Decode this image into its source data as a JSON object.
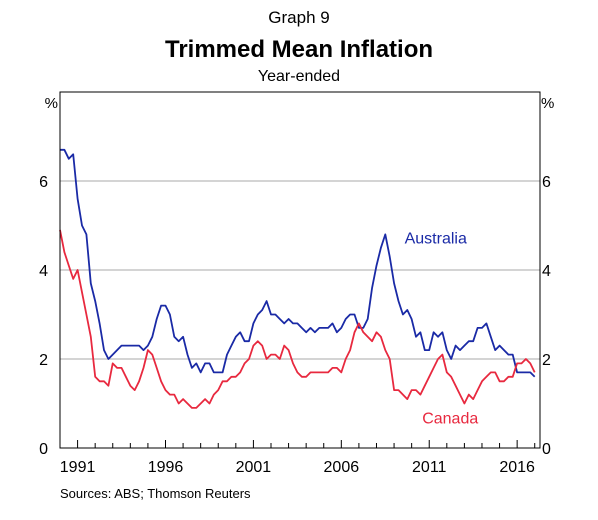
{
  "header": {
    "graph_number": "Graph 9",
    "title": "Trimmed Mean Inflation",
    "subtitle": "Year-ended"
  },
  "footer": {
    "sources": "Sources:   ABS; Thomson Reuters"
  },
  "colors": {
    "australia": "#1a2aa6",
    "canada": "#e8293f",
    "grid": "#a8a8a8",
    "axis": "#000000"
  },
  "chart_data": {
    "type": "line",
    "title": "Trimmed Mean Inflation",
    "subtitle": "Year-ended",
    "ylabel_left": "%",
    "ylabel_right": "%",
    "ylim": [
      0,
      8
    ],
    "yticks": [
      0,
      2,
      4,
      6
    ],
    "xlim": [
      1990,
      2017.3
    ],
    "xticks": [
      1991,
      1996,
      2001,
      2006,
      2011,
      2016
    ],
    "grid": true,
    "legend": "inline labels",
    "series": [
      {
        "name": "Australia",
        "color": "#1a2aa6",
        "x": [
          1990.0,
          1990.25,
          1990.5,
          1990.75,
          1991.0,
          1991.25,
          1991.5,
          1991.75,
          1992.0,
          1992.25,
          1992.5,
          1992.75,
          1993.0,
          1993.25,
          1993.5,
          1993.75,
          1994.0,
          1994.25,
          1994.5,
          1994.75,
          1995.0,
          1995.25,
          1995.5,
          1995.75,
          1996.0,
          1996.25,
          1996.5,
          1996.75,
          1997.0,
          1997.25,
          1997.5,
          1997.75,
          1998.0,
          1998.25,
          1998.5,
          1998.75,
          1999.0,
          1999.25,
          1999.5,
          1999.75,
          2000.0,
          2000.25,
          2000.5,
          2000.75,
          2001.0,
          2001.25,
          2001.5,
          2001.75,
          2002.0,
          2002.25,
          2002.5,
          2002.75,
          2003.0,
          2003.25,
          2003.5,
          2003.75,
          2004.0,
          2004.25,
          2004.5,
          2004.75,
          2005.0,
          2005.25,
          2005.5,
          2005.75,
          2006.0,
          2006.25,
          2006.5,
          2006.75,
          2007.0,
          2007.25,
          2007.5,
          2007.75,
          2008.0,
          2008.25,
          2008.5,
          2008.75,
          2009.0,
          2009.25,
          2009.5,
          2009.75,
          2010.0,
          2010.25,
          2010.5,
          2010.75,
          2011.0,
          2011.25,
          2011.5,
          2011.75,
          2012.0,
          2012.25,
          2012.5,
          2012.75,
          2013.0,
          2013.25,
          2013.5,
          2013.75,
          2014.0,
          2014.25,
          2014.5,
          2014.75,
          2015.0,
          2015.25,
          2015.5,
          2015.75,
          2016.0,
          2016.25,
          2016.5,
          2016.75,
          2017.0
        ],
        "values": [
          6.7,
          6.7,
          6.5,
          6.6,
          5.6,
          5.0,
          4.8,
          3.7,
          3.3,
          2.8,
          2.2,
          2.0,
          2.1,
          2.2,
          2.3,
          2.3,
          2.3,
          2.3,
          2.3,
          2.2,
          2.3,
          2.5,
          2.9,
          3.2,
          3.2,
          3.0,
          2.5,
          2.4,
          2.5,
          2.1,
          1.8,
          1.9,
          1.7,
          1.9,
          1.9,
          1.7,
          1.7,
          1.7,
          2.1,
          2.3,
          2.5,
          2.6,
          2.4,
          2.4,
          2.8,
          3.0,
          3.1,
          3.3,
          3.0,
          3.0,
          2.9,
          2.8,
          2.9,
          2.8,
          2.8,
          2.7,
          2.6,
          2.7,
          2.6,
          2.7,
          2.7,
          2.7,
          2.8,
          2.6,
          2.7,
          2.9,
          3.0,
          3.0,
          2.7,
          2.7,
          2.9,
          3.6,
          4.1,
          4.5,
          4.8,
          4.3,
          3.7,
          3.3,
          3.0,
          3.1,
          2.9,
          2.5,
          2.6,
          2.2,
          2.2,
          2.6,
          2.5,
          2.6,
          2.2,
          2.0,
          2.3,
          2.2,
          2.3,
          2.4,
          2.4,
          2.7,
          2.7,
          2.8,
          2.5,
          2.2,
          2.3,
          2.2,
          2.1,
          2.1,
          1.7,
          1.7,
          1.7,
          1.7,
          1.6
        ]
      },
      {
        "name": "Canada",
        "color": "#e8293f",
        "x": [
          1990.0,
          1990.25,
          1990.5,
          1990.75,
          1991.0,
          1991.25,
          1991.5,
          1991.75,
          1992.0,
          1992.25,
          1992.5,
          1992.75,
          1993.0,
          1993.25,
          1993.5,
          1993.75,
          1994.0,
          1994.25,
          1994.5,
          1994.75,
          1995.0,
          1995.25,
          1995.5,
          1995.75,
          1996.0,
          1996.25,
          1996.5,
          1996.75,
          1997.0,
          1997.25,
          1997.5,
          1997.75,
          1998.0,
          1998.25,
          1998.5,
          1998.75,
          1999.0,
          1999.25,
          1999.5,
          1999.75,
          2000.0,
          2000.25,
          2000.5,
          2000.75,
          2001.0,
          2001.25,
          2001.5,
          2001.75,
          2002.0,
          2002.25,
          2002.5,
          2002.75,
          2003.0,
          2003.25,
          2003.5,
          2003.75,
          2004.0,
          2004.25,
          2004.5,
          2004.75,
          2005.0,
          2005.25,
          2005.5,
          2005.75,
          2006.0,
          2006.25,
          2006.5,
          2006.75,
          2007.0,
          2007.25,
          2007.5,
          2007.75,
          2008.0,
          2008.25,
          2008.5,
          2008.75,
          2009.0,
          2009.25,
          2009.5,
          2009.75,
          2010.0,
          2010.25,
          2010.5,
          2010.75,
          2011.0,
          2011.25,
          2011.5,
          2011.75,
          2012.0,
          2012.25,
          2012.5,
          2012.75,
          2013.0,
          2013.25,
          2013.5,
          2013.75,
          2014.0,
          2014.25,
          2014.5,
          2014.75,
          2015.0,
          2015.25,
          2015.5,
          2015.75,
          2016.0,
          2016.25,
          2016.5,
          2016.75,
          2017.0
        ],
        "values": [
          4.9,
          4.4,
          4.1,
          3.8,
          4.0,
          3.5,
          3.0,
          2.5,
          1.6,
          1.5,
          1.5,
          1.4,
          1.9,
          1.8,
          1.8,
          1.6,
          1.4,
          1.3,
          1.5,
          1.8,
          2.2,
          2.1,
          1.8,
          1.5,
          1.3,
          1.2,
          1.2,
          1.0,
          1.1,
          1.0,
          0.9,
          0.9,
          1.0,
          1.1,
          1.0,
          1.2,
          1.3,
          1.5,
          1.5,
          1.6,
          1.6,
          1.7,
          1.9,
          2.0,
          2.3,
          2.4,
          2.3,
          2.0,
          2.1,
          2.1,
          2.0,
          2.3,
          2.2,
          1.9,
          1.7,
          1.6,
          1.6,
          1.7,
          1.7,
          1.7,
          1.7,
          1.7,
          1.8,
          1.8,
          1.7,
          2.0,
          2.2,
          2.6,
          2.8,
          2.6,
          2.5,
          2.4,
          2.6,
          2.5,
          2.2,
          2.0,
          1.3,
          1.3,
          1.2,
          1.1,
          1.3,
          1.3,
          1.2,
          1.4,
          1.6,
          1.8,
          2.0,
          2.1,
          1.7,
          1.6,
          1.4,
          1.2,
          1.0,
          1.2,
          1.1,
          1.3,
          1.5,
          1.6,
          1.7,
          1.7,
          1.5,
          1.5,
          1.6,
          1.6,
          1.9,
          1.9,
          2.0,
          1.9,
          1.7
        ]
      }
    ],
    "annotations": [
      {
        "text": "Australia",
        "x": 2009.6,
        "y": 4.6,
        "series": "Australia"
      },
      {
        "text": "Canada",
        "x": 2010.6,
        "y": 0.55,
        "series": "Canada"
      }
    ]
  }
}
